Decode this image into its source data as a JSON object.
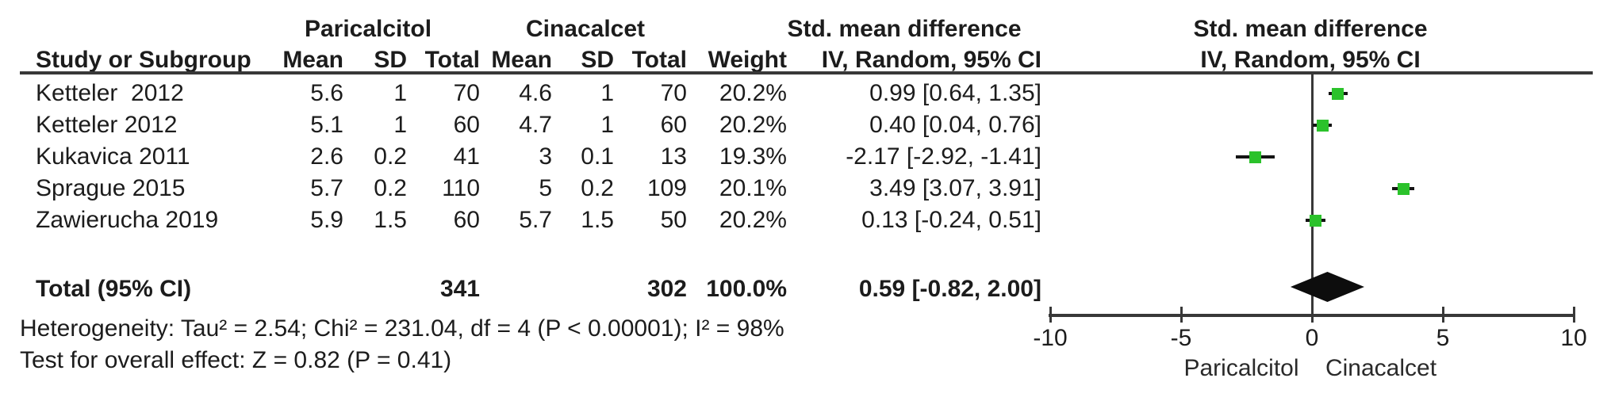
{
  "table": {
    "group_headers": {
      "paricalcitol": "Paricalcitol",
      "cinacalcet": "Cinacalcet",
      "smd": "Std. mean difference"
    },
    "col_headers": {
      "study": "Study or Subgroup",
      "mean": "Mean",
      "sd": "SD",
      "total": "Total",
      "weight": "Weight",
      "iv_random": "IV, Random, 95% CI"
    },
    "rows": [
      {
        "study": "Ketteler  2012",
        "p_mean": "5.6",
        "p_sd": "1",
        "p_total": "70",
        "c_mean": "4.6",
        "c_sd": "1",
        "c_total": "70",
        "weight": "20.2%",
        "ci_text": "0.99 [0.64, 1.35]"
      },
      {
        "study": "Ketteler 2012",
        "p_mean": "5.1",
        "p_sd": "1",
        "p_total": "60",
        "c_mean": "4.7",
        "c_sd": "1",
        "c_total": "60",
        "weight": "20.2%",
        "ci_text": "0.40 [0.04, 0.76]"
      },
      {
        "study": "Kukavica 2011",
        "p_mean": "2.6",
        "p_sd": "0.2",
        "p_total": "41",
        "c_mean": "3",
        "c_sd": "0.1",
        "c_total": "13",
        "weight": "19.3%",
        "ci_text": "-2.17 [-2.92, -1.41]"
      },
      {
        "study": "Sprague 2015",
        "p_mean": "5.7",
        "p_sd": "0.2",
        "p_total": "110",
        "c_mean": "5",
        "c_sd": "0.2",
        "c_total": "109",
        "weight": "20.1%",
        "ci_text": "3.49 [3.07, 3.91]"
      },
      {
        "study": "Zawierucha 2019",
        "p_mean": "5.9",
        "p_sd": "1.5",
        "p_total": "60",
        "c_mean": "5.7",
        "c_sd": "1.5",
        "c_total": "50",
        "weight": "20.2%",
        "ci_text": "0.13 [-0.24, 0.51]"
      }
    ],
    "total_row": {
      "label": "Total (95% CI)",
      "p_total": "341",
      "c_total": "302",
      "weight": "100.0%",
      "ci_text": "0.59 [-0.82, 2.00]"
    },
    "heterogeneity": "Heterogeneity: Tau² = 2.54; Chi² = 231.04, df = 4 (P < 0.00001); I² = 98%",
    "overall_effect": "Test for overall effect: Z = 0.82 (P = 0.41)"
  },
  "plot": {
    "header_line1": "Std. mean difference",
    "header_line2": "IV, Random, 95% CI",
    "xlabel_left": "Paricalcitol",
    "xlabel_right": "Cinacalcet",
    "marker_color": "#2bc22b",
    "diamond_color": "#0d0d0d",
    "line_color": "#383838"
  },
  "chart_data": {
    "type": "scatter",
    "subtype": "forest-plot",
    "title": "",
    "xlabel": "Std. mean difference (IV, Random, 95% CI)",
    "xlim": [
      -10,
      10
    ],
    "ticks": [
      -10,
      -5,
      0,
      5,
      10
    ],
    "grid": false,
    "studies": [
      {
        "name": "Ketteler  2012",
        "smd": 0.99,
        "ci_low": 0.64,
        "ci_high": 1.35,
        "weight_pct": 20.2
      },
      {
        "name": "Ketteler 2012",
        "smd": 0.4,
        "ci_low": 0.04,
        "ci_high": 0.76,
        "weight_pct": 20.2
      },
      {
        "name": "Kukavica 2011",
        "smd": -2.17,
        "ci_low": -2.92,
        "ci_high": -1.41,
        "weight_pct": 19.3
      },
      {
        "name": "Sprague 2015",
        "smd": 3.49,
        "ci_low": 3.07,
        "ci_high": 3.91,
        "weight_pct": 20.1
      },
      {
        "name": "Zawierucha 2019",
        "smd": 0.13,
        "ci_low": -0.24,
        "ci_high": 0.51,
        "weight_pct": 20.2
      }
    ],
    "total": {
      "smd": 0.59,
      "ci_low": -0.82,
      "ci_high": 2.0,
      "weight_pct": 100.0
    },
    "favours_left": "Paricalcitol",
    "favours_right": "Cinacalcet"
  }
}
